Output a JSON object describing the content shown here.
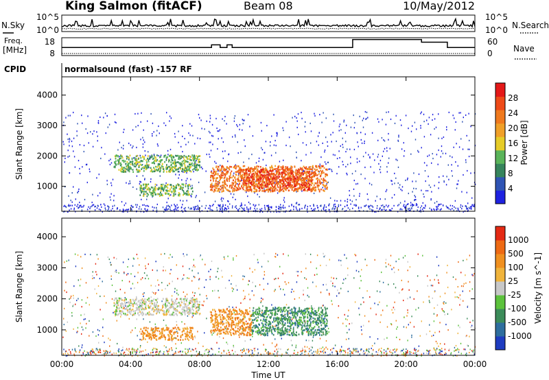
{
  "header": {
    "station": "King Salmon (fitACF)",
    "beam": "Beam 08",
    "date": "10/May/2012"
  },
  "noise_panel": {
    "left_label": "N.Sky",
    "right_label": "N.Search",
    "left_ticks": [
      "10^5",
      "10^0"
    ],
    "right_ticks": [
      "10^5",
      "10^0"
    ]
  },
  "freq_panel": {
    "left_label_1": "Freq.",
    "left_label_2": "[MHz]",
    "right_label": "Nave",
    "left_ticks": [
      "18",
      "8"
    ],
    "right_ticks": [
      "60",
      "0"
    ],
    "freq_steps": [
      {
        "from": 0.0,
        "to": 8.7,
        "value": 12.5
      },
      {
        "from": 8.7,
        "to": 9.2,
        "value": 14.0
      },
      {
        "from": 9.2,
        "to": 9.6,
        "value": 12.5
      },
      {
        "from": 9.6,
        "to": 9.9,
        "value": 14.0
      },
      {
        "from": 9.9,
        "to": 16.9,
        "value": 12.5
      },
      {
        "from": 16.9,
        "to": 20.9,
        "value": 17.0
      },
      {
        "from": 20.9,
        "to": 22.4,
        "value": 15.5
      },
      {
        "from": 22.4,
        "to": 24.0,
        "value": 12.5
      }
    ]
  },
  "cpid": {
    "label": "CPID",
    "text": "normalsound (fast) -157 RF"
  },
  "chart_data": [
    {
      "type": "heatmap",
      "name": "power",
      "ylabel": "Slant Range [km]",
      "ylim": [
        180,
        4600
      ],
      "yticks": [
        "1000",
        "2000",
        "3000",
        "4000"
      ],
      "xlim": [
        0,
        24
      ],
      "colorbar_label": "Power [dB]",
      "colorbar_ticks": [
        "4",
        "8",
        "12",
        "16",
        "20",
        "24",
        "28"
      ],
      "colorbar_colors": [
        "#1e22e0",
        "#2f54b4",
        "#36845c",
        "#5ab45a",
        "#e6cc28",
        "#f0a028",
        "#f07a1e",
        "#ee4a18",
        "#e41818"
      ],
      "regions": [
        {
          "x0": 3.0,
          "x1": 8.0,
          "y0": 1500,
          "y1": 2050,
          "level": 3
        },
        {
          "x0": 4.5,
          "x1": 7.6,
          "y0": 700,
          "y1": 1100,
          "level": 3
        },
        {
          "x0": 8.6,
          "x1": 15.4,
          "y0": 850,
          "y1": 1700,
          "level": 6
        },
        {
          "x0": 10.5,
          "x1": 14.5,
          "y0": 900,
          "y1": 1600,
          "level": 7
        }
      ]
    },
    {
      "type": "heatmap",
      "name": "velocity",
      "ylabel": "Slant Range [km]",
      "ylim": [
        180,
        4600
      ],
      "yticks": [
        "1000",
        "2000",
        "3000",
        "4000"
      ],
      "xlim": [
        0,
        24
      ],
      "colorbar_label": "Velocity [m s^-1]",
      "colorbar_ticks": [
        "1000",
        "500",
        "100",
        "25",
        "-25",
        "-100",
        "-500",
        "-1000"
      ],
      "colorbar_colors": [
        "#1e3cc0",
        "#2e6e9e",
        "#3c8c5a",
        "#5cc23c",
        "#c8c8c8",
        "#f0b43c",
        "#f09020",
        "#ee6a14",
        "#e42a14"
      ],
      "regions": [
        {
          "x0": 3.0,
          "x1": 8.0,
          "y0": 1500,
          "y1": 2050,
          "level": 4
        },
        {
          "x0": 4.5,
          "x1": 7.6,
          "y0": 700,
          "y1": 1100,
          "level": 6
        },
        {
          "x0": 8.6,
          "x1": 11.0,
          "y0": 850,
          "y1": 1700,
          "level": 6
        },
        {
          "x0": 11.0,
          "x1": 15.4,
          "y0": 850,
          "y1": 1750,
          "level": 2
        }
      ]
    }
  ],
  "x_axis": {
    "ticks": [
      "00:00",
      "04:00",
      "08:00",
      "12:00",
      "16:00",
      "20:00",
      "00:00"
    ],
    "label": "Time UT"
  }
}
